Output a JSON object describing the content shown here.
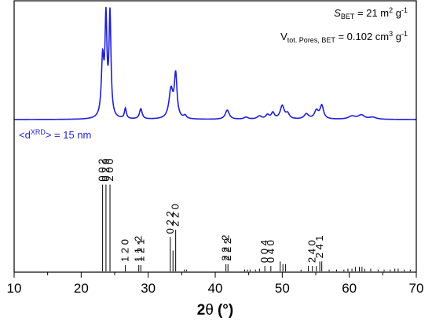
{
  "chart_data": {
    "type": "line",
    "xlabel_main": "2",
    "xlabel_theta": "θ",
    "xlabel_unit": "(°)",
    "xlim": [
      10,
      70
    ],
    "xticks": [
      10,
      20,
      30,
      40,
      50,
      60,
      70
    ],
    "annotations": {
      "sbet_s": "S",
      "sbet_sub": "BET",
      "sbet_value": " = 21 m",
      "sbet_sup2": "2",
      "sbet_g": " g",
      "sbet_sup_m1": "-1",
      "vtot_v": "V",
      "vtot_sub": "tot. Pores, BET",
      "vtot_value": " = 0.102 cm",
      "vtot_sup3": "3",
      "vtot_g": " g",
      "vtot_sup_m1": "-1",
      "dxrd_open": "<d",
      "dxrd_sup": "XRD",
      "dxrd_close": "> = 15 nm"
    },
    "colors": {
      "pattern": "#1f1fd6",
      "reference": "#000000"
    },
    "pattern_peaks": [
      {
        "x": 23.2,
        "h": 0.56,
        "w": 0.28
      },
      {
        "x": 23.7,
        "h": 0.93,
        "w": 0.22
      },
      {
        "x": 24.3,
        "h": 1.0,
        "w": 0.22
      },
      {
        "x": 26.6,
        "h": 0.1,
        "w": 0.22
      },
      {
        "x": 28.9,
        "h": 0.1,
        "w": 0.3
      },
      {
        "x": 33.4,
        "h": 0.28,
        "w": 0.45
      },
      {
        "x": 34.1,
        "h": 0.42,
        "w": 0.3
      },
      {
        "x": 35.5,
        "h": 0.03,
        "w": 0.3
      },
      {
        "x": 41.8,
        "h": 0.09,
        "w": 0.45
      },
      {
        "x": 44.6,
        "h": 0.02,
        "w": 0.5
      },
      {
        "x": 46.6,
        "h": 0.03,
        "w": 0.5
      },
      {
        "x": 47.8,
        "h": 0.04,
        "w": 0.4
      },
      {
        "x": 48.6,
        "h": 0.06,
        "w": 0.35
      },
      {
        "x": 50.0,
        "h": 0.13,
        "w": 0.45
      },
      {
        "x": 50.8,
        "h": 0.05,
        "w": 0.4
      },
      {
        "x": 53.6,
        "h": 0.05,
        "w": 0.5
      },
      {
        "x": 55.1,
        "h": 0.08,
        "w": 0.45
      },
      {
        "x": 55.9,
        "h": 0.13,
        "w": 0.4
      },
      {
        "x": 60.4,
        "h": 0.03,
        "w": 0.8
      },
      {
        "x": 61.8,
        "h": 0.04,
        "w": 0.7
      },
      {
        "x": 63.5,
        "h": 0.02,
        "w": 0.8
      }
    ],
    "reference_lines": [
      {
        "x": 23.2,
        "h": 0.96
      },
      {
        "x": 23.7,
        "h": 0.96
      },
      {
        "x": 24.3,
        "h": 0.96
      },
      {
        "x": 26.6,
        "h": 0.07
      },
      {
        "x": 28.6,
        "h": 0.07
      },
      {
        "x": 28.9,
        "h": 0.07
      },
      {
        "x": 33.3,
        "h": 0.38
      },
      {
        "x": 33.7,
        "h": 0.23
      },
      {
        "x": 34.1,
        "h": 0.46
      },
      {
        "x": 35.4,
        "h": 0.02
      },
      {
        "x": 35.7,
        "h": 0.02
      },
      {
        "x": 41.6,
        "h": 0.08
      },
      {
        "x": 41.9,
        "h": 0.08
      },
      {
        "x": 44.4,
        "h": 0.02
      },
      {
        "x": 44.8,
        "h": 0.02
      },
      {
        "x": 45.2,
        "h": 0.02
      },
      {
        "x": 46.0,
        "h": 0.02
      },
      {
        "x": 46.6,
        "h": 0.03
      },
      {
        "x": 47.4,
        "h": 0.06
      },
      {
        "x": 48.3,
        "h": 0.06
      },
      {
        "x": 49.7,
        "h": 0.11
      },
      {
        "x": 50.1,
        "h": 0.08
      },
      {
        "x": 50.5,
        "h": 0.08
      },
      {
        "x": 52.8,
        "h": 0.02
      },
      {
        "x": 53.9,
        "h": 0.06
      },
      {
        "x": 54.5,
        "h": 0.06
      },
      {
        "x": 55.1,
        "h": 0.06
      },
      {
        "x": 55.6,
        "h": 0.11
      },
      {
        "x": 55.9,
        "h": 0.11
      },
      {
        "x": 57.0,
        "h": 0.02
      },
      {
        "x": 58.1,
        "h": 0.02
      },
      {
        "x": 59.2,
        "h": 0.02
      },
      {
        "x": 59.8,
        "h": 0.03
      },
      {
        "x": 60.4,
        "h": 0.03
      },
      {
        "x": 60.9,
        "h": 0.05
      },
      {
        "x": 61.5,
        "h": 0.05
      },
      {
        "x": 61.9,
        "h": 0.05
      },
      {
        "x": 62.3,
        "h": 0.03
      },
      {
        "x": 63.2,
        "h": 0.03
      },
      {
        "x": 64.3,
        "h": 0.02
      },
      {
        "x": 65.2,
        "h": 0.02
      },
      {
        "x": 66.1,
        "h": 0.02
      },
      {
        "x": 66.8,
        "h": 0.03
      },
      {
        "x": 67.3,
        "h": 0.03
      },
      {
        "x": 68.2,
        "h": 0.02
      },
      {
        "x": 69.1,
        "h": 0.02
      }
    ],
    "hkl_labels": [
      {
        "x": 23.2,
        "text": "0 0 2"
      },
      {
        "x": 23.7,
        "text": "0 2 0"
      },
      {
        "x": 24.3,
        "text": "2 0 0"
      },
      {
        "x": 26.6,
        "text": "1 2 0"
      },
      {
        "x": 28.6,
        "text": "1 1 -2"
      },
      {
        "x": 28.9,
        "text": "1 2 1"
      },
      {
        "x": 33.3,
        "text": "0 2 2"
      },
      {
        "x": 34.1,
        "text": "2 2 0"
      },
      {
        "x": 41.6,
        "text": "2 2 -2"
      },
      {
        "x": 41.9,
        "text": "2 2 2"
      },
      {
        "x": 47.4,
        "text": "0 0 4"
      },
      {
        "x": 48.3,
        "text": "0 4 0"
      },
      {
        "x": 54.5,
        "text": "2 4 0"
      },
      {
        "x": 55.6,
        "text": "2 4 1"
      }
    ]
  }
}
